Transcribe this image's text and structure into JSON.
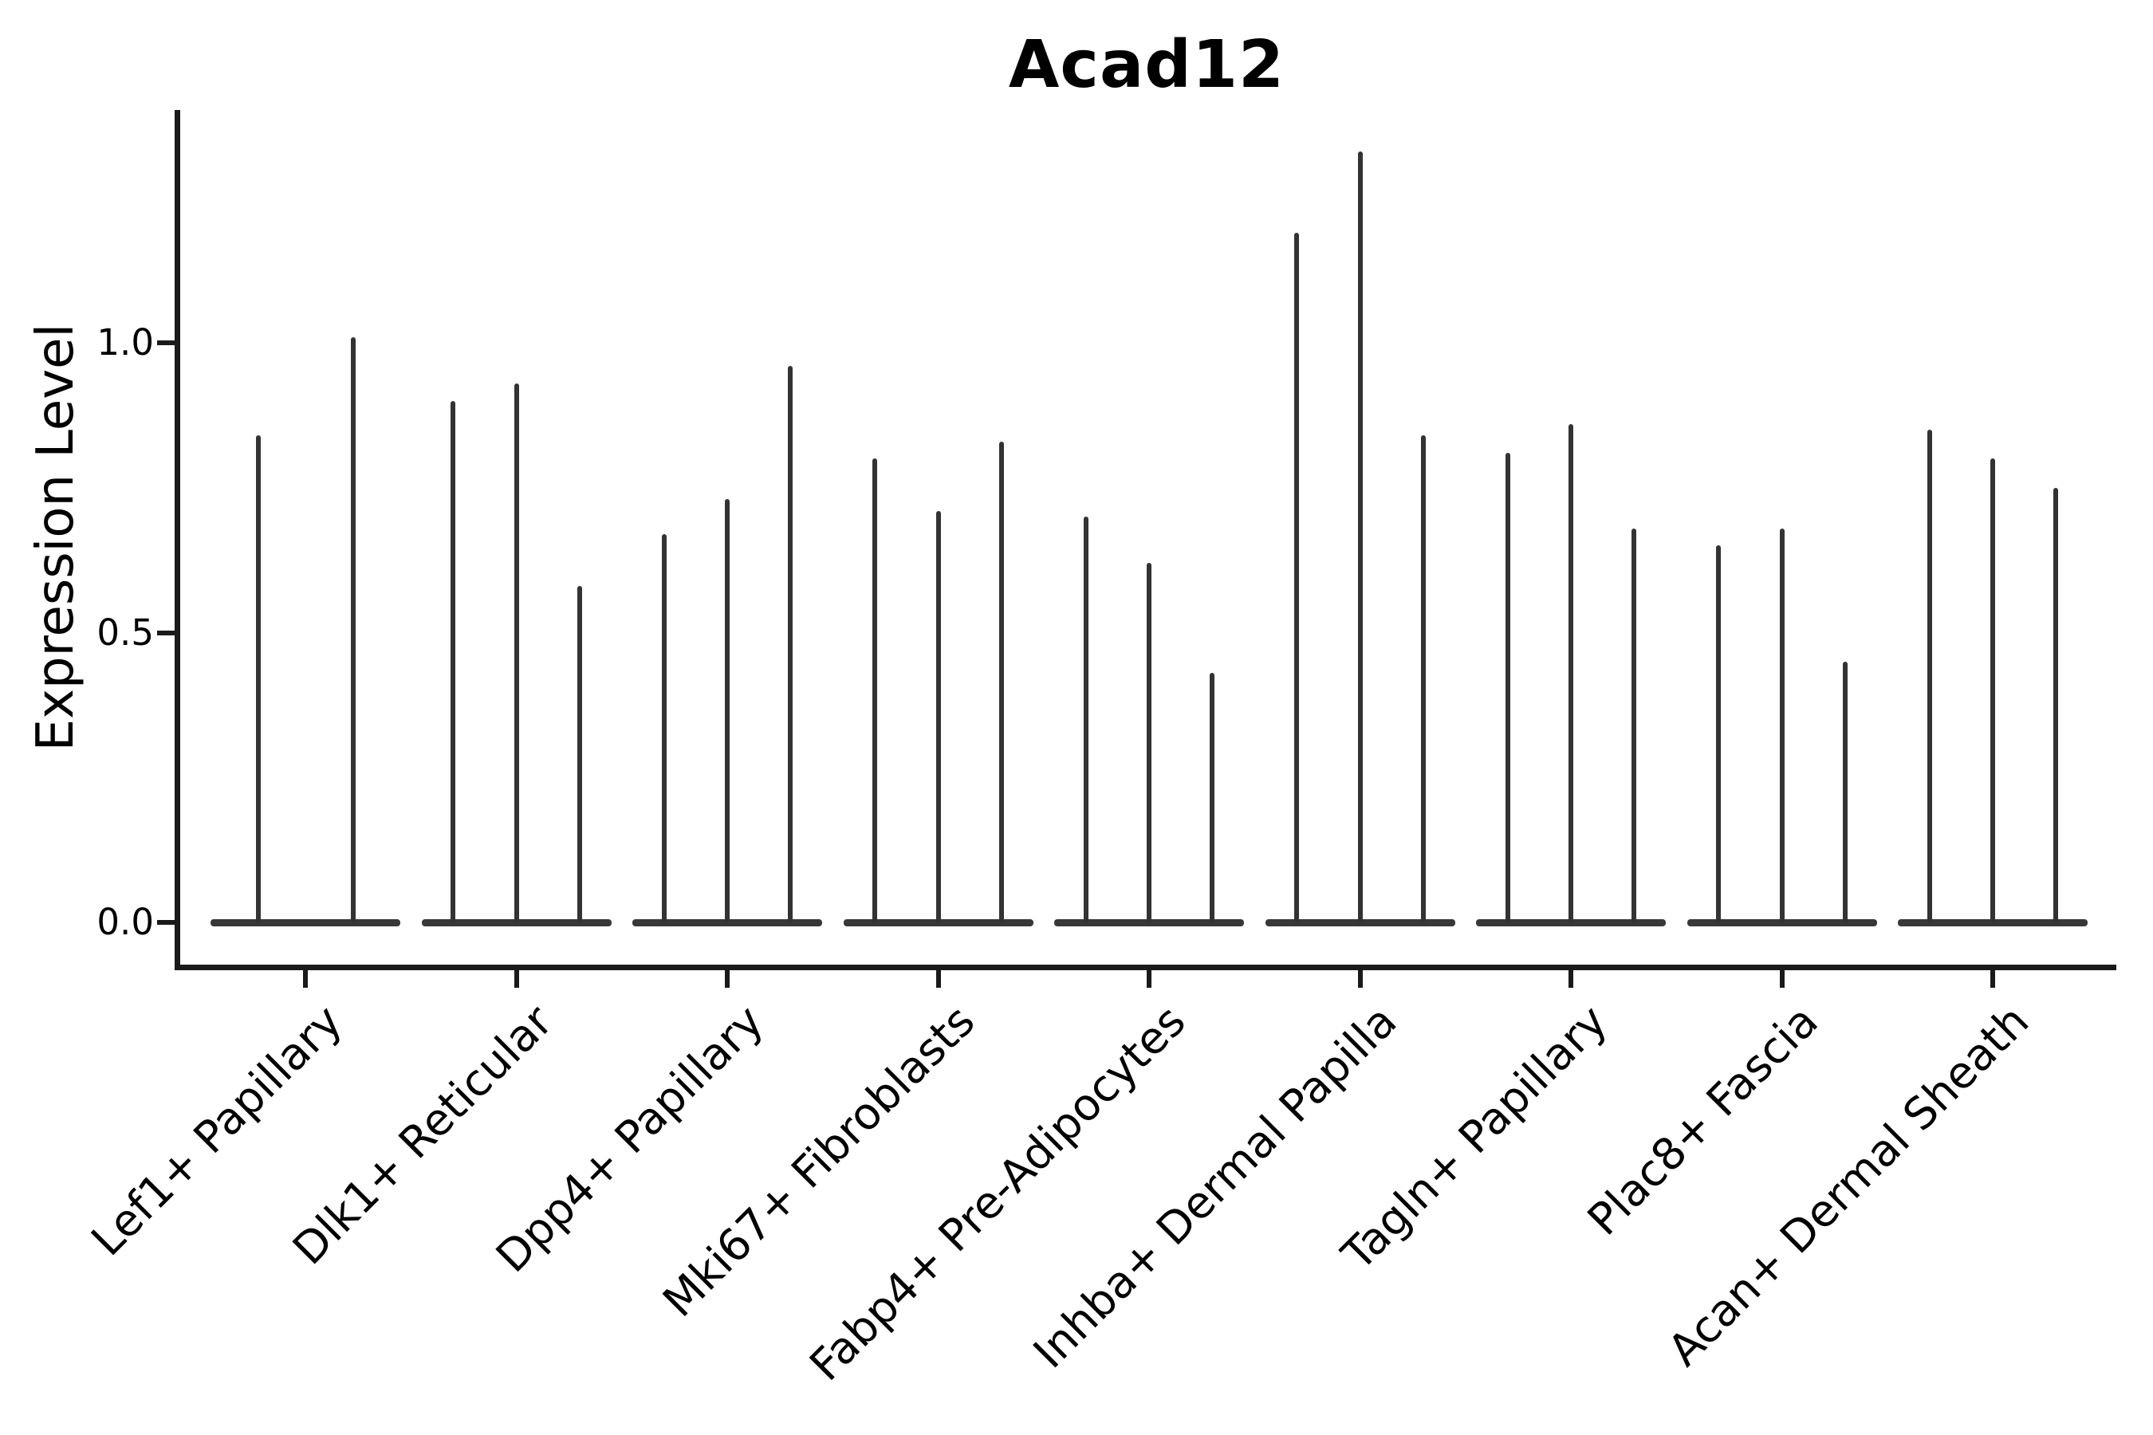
{
  "colors": {
    "violin_spike": "#333333",
    "violin_baseline": "#383838",
    "axis": "#1a1a1a",
    "text": "#000000",
    "background": "#ffffff"
  },
  "chart_data": {
    "type": "violin",
    "title": "Acad12",
    "xlabel": "",
    "ylabel": "Expression Level",
    "ylim": [
      -0.07,
      1.4
    ],
    "grid": false,
    "legend": "none",
    "x_label_rotation_deg": 45,
    "yticks": [
      {
        "value": 0.0,
        "label": "0.0"
      },
      {
        "value": 0.5,
        "label": "0.5"
      },
      {
        "value": 1.0,
        "label": "1.0"
      }
    ],
    "shape_note": "Each cluster shows narrow needle violins: bulk of cells at expression 0 (flat bar on baseline) with thin spikes rising to the listed maximum expression values, one spike per violin.",
    "groups": [
      {
        "label": "Lef1+ Papillary",
        "spike_maxima": [
          0.84,
          1.01
        ]
      },
      {
        "label": "Dlk1+ Reticular",
        "spike_maxima": [
          0.9,
          0.93,
          0.58
        ]
      },
      {
        "label": "Dpp4+ Papillary",
        "spike_maxima": [
          0.67,
          0.73,
          0.96
        ]
      },
      {
        "label": "Mki67+ Fibroblasts",
        "spike_maxima": [
          0.8,
          0.71,
          0.83
        ]
      },
      {
        "label": "Fabp4+ Pre-Adipocytes",
        "spike_maxima": [
          0.7,
          0.62,
          0.43
        ]
      },
      {
        "label": "Inhba+ Dermal Papilla",
        "spike_maxima": [
          1.19,
          1.33,
          0.84
        ]
      },
      {
        "label": "Tagln+ Papillary",
        "spike_maxima": [
          0.81,
          0.86,
          0.68
        ]
      },
      {
        "label": "Plac8+ Fascia",
        "spike_maxima": [
          0.65,
          0.68,
          0.45
        ]
      },
      {
        "label": "Acan+ Dermal Sheath",
        "spike_maxima": [
          0.85,
          0.8,
          0.75
        ]
      }
    ]
  }
}
